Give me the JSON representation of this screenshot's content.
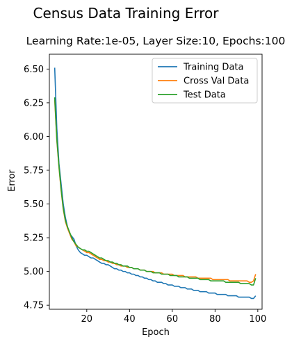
{
  "chart_data": {
    "type": "line",
    "title": "Census Data Training Error",
    "subtitle": "Learning Rate:1e-05, Layer Size:10, Epochs:100",
    "xlabel": "Epoch",
    "ylabel": "Error",
    "xlim": [
      2.5,
      102.0
    ],
    "ylim": [
      4.72,
      6.61
    ],
    "x_ticks": [
      20,
      40,
      60,
      80,
      100
    ],
    "y_ticks": [
      4.75,
      5.0,
      5.25,
      5.5,
      5.75,
      6.0,
      6.25,
      6.5
    ],
    "y_tick_labels": [
      "4.75",
      "5.00",
      "5.25",
      "5.50",
      "5.75",
      "6.00",
      "6.25",
      "6.50"
    ],
    "grid": false,
    "legend_position": "top-right",
    "x_start": 5,
    "x_step": 1,
    "series": [
      {
        "name": "Training Data",
        "color": "#1f77b4",
        "values": [
          6.51,
          6.06,
          5.8,
          5.65,
          5.5,
          5.4,
          5.33,
          5.28,
          5.26,
          5.24,
          5.19,
          5.16,
          5.14,
          5.13,
          5.12,
          5.12,
          5.11,
          5.1,
          5.1,
          5.09,
          5.08,
          5.07,
          5.06,
          5.06,
          5.05,
          5.05,
          5.04,
          5.03,
          5.02,
          5.02,
          5.01,
          5.01,
          5.0,
          5.0,
          4.99,
          4.99,
          4.98,
          4.98,
          4.97,
          4.97,
          4.96,
          4.96,
          4.95,
          4.95,
          4.94,
          4.94,
          4.93,
          4.93,
          4.92,
          4.92,
          4.92,
          4.91,
          4.91,
          4.9,
          4.9,
          4.9,
          4.89,
          4.89,
          4.89,
          4.88,
          4.88,
          4.88,
          4.87,
          4.87,
          4.87,
          4.86,
          4.86,
          4.86,
          4.85,
          4.85,
          4.85,
          4.85,
          4.84,
          4.84,
          4.84,
          4.84,
          4.83,
          4.83,
          4.83,
          4.83,
          4.83,
          4.82,
          4.82,
          4.82,
          4.82,
          4.82,
          4.81,
          4.81,
          4.81,
          4.81,
          4.81,
          4.81,
          4.8,
          4.8,
          4.82
        ]
      },
      {
        "name": "Cross Val Data",
        "color": "#ff7f0e",
        "values": [
          6.27,
          5.97,
          5.77,
          5.6,
          5.46,
          5.37,
          5.32,
          5.28,
          5.24,
          5.22,
          5.19,
          5.18,
          5.17,
          5.16,
          5.15,
          5.14,
          5.14,
          5.13,
          5.12,
          5.11,
          5.1,
          5.09,
          5.09,
          5.08,
          5.08,
          5.07,
          5.07,
          5.06,
          5.06,
          5.05,
          5.05,
          5.04,
          5.04,
          5.04,
          5.03,
          5.03,
          5.03,
          5.02,
          5.02,
          5.02,
          5.01,
          5.01,
          5.01,
          5.0,
          5.0,
          5.0,
          5.0,
          4.99,
          4.99,
          4.99,
          4.99,
          4.98,
          4.98,
          4.98,
          4.98,
          4.98,
          4.97,
          4.97,
          4.97,
          4.97,
          4.97,
          4.96,
          4.96,
          4.96,
          4.96,
          4.96,
          4.96,
          4.95,
          4.95,
          4.95,
          4.95,
          4.95,
          4.95,
          4.95,
          4.94,
          4.94,
          4.94,
          4.94,
          4.94,
          4.94,
          4.94,
          4.94,
          4.93,
          4.93,
          4.93,
          4.93,
          4.93,
          4.93,
          4.93,
          4.93,
          4.93,
          4.92,
          4.92,
          4.93,
          4.98
        ]
      },
      {
        "name": "Test Data",
        "color": "#2ca02c",
        "values": [
          6.29,
          5.98,
          5.78,
          5.61,
          5.47,
          5.38,
          5.33,
          5.29,
          5.25,
          5.22,
          5.2,
          5.18,
          5.17,
          5.16,
          5.16,
          5.15,
          5.15,
          5.14,
          5.13,
          5.12,
          5.11,
          5.1,
          5.1,
          5.09,
          5.08,
          5.08,
          5.07,
          5.07,
          5.06,
          5.06,
          5.05,
          5.05,
          5.04,
          5.04,
          5.04,
          5.03,
          5.03,
          5.02,
          5.02,
          5.02,
          5.01,
          5.01,
          5.01,
          5.0,
          5.0,
          5.0,
          4.99,
          4.99,
          4.99,
          4.99,
          4.98,
          4.98,
          4.98,
          4.98,
          4.97,
          4.97,
          4.97,
          4.97,
          4.96,
          4.96,
          4.96,
          4.96,
          4.96,
          4.95,
          4.95,
          4.95,
          4.95,
          4.95,
          4.94,
          4.94,
          4.94,
          4.94,
          4.94,
          4.93,
          4.93,
          4.93,
          4.93,
          4.93,
          4.93,
          4.93,
          4.92,
          4.92,
          4.92,
          4.92,
          4.92,
          4.92,
          4.92,
          4.91,
          4.91,
          4.91,
          4.91,
          4.91,
          4.9,
          4.9,
          4.95
        ]
      }
    ]
  }
}
